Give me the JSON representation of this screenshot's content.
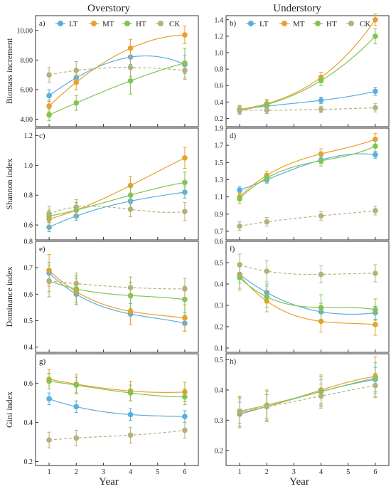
{
  "figure": {
    "overstory_title": "Overstory",
    "understory_title": "Understory",
    "xlabel": "Year",
    "legend": [
      "LT",
      "MT",
      "HT",
      "CK"
    ]
  },
  "colors": {
    "LT": "#5aaee0",
    "MT": "#e9a02e",
    "HT": "#82c452",
    "CK": "#b6b07a"
  },
  "chart_data": [
    {
      "panel": "a)",
      "type": "line",
      "ylabel": "Biomass increment",
      "x": [
        1,
        2,
        4,
        6
      ],
      "xlim": [
        0.5,
        6.5
      ],
      "ylim": [
        3.5,
        11
      ],
      "yticks": [
        "4.00",
        "6.00",
        "8.00",
        "10.00"
      ],
      "ytick_values": [
        4,
        6,
        8,
        10
      ],
      "xticks": [
        "1",
        "2",
        "3",
        "4",
        "5",
        "6"
      ],
      "grid": false,
      "legend": "top",
      "series": [
        {
          "name": "LT",
          "values": [
            5.6,
            6.8,
            8.2,
            7.7
          ],
          "err": [
            0.4,
            0.4,
            0.5,
            0.6
          ]
        },
        {
          "name": "MT",
          "values": [
            4.9,
            6.5,
            8.8,
            9.7
          ],
          "err": [
            0.4,
            0.5,
            0.6,
            0.6
          ]
        },
        {
          "name": "HT",
          "values": [
            4.3,
            5.1,
            6.6,
            7.8
          ],
          "err": [
            0.4,
            0.5,
            0.9,
            1.0
          ]
        },
        {
          "name": "CK",
          "values": [
            7.0,
            7.3,
            7.5,
            7.3
          ],
          "err": [
            0.5,
            0.6,
            0.6,
            0.6
          ]
        }
      ]
    },
    {
      "panel": "b)",
      "type": "line",
      "ylabel": "",
      "x": [
        1,
        2,
        4,
        6
      ],
      "xlim": [
        0.5,
        6.5
      ],
      "ylim": [
        0.1,
        1.45
      ],
      "yticks": [
        "0.2",
        "0.4",
        "0.6",
        "0.8",
        "1.0",
        "1.2",
        "1.4"
      ],
      "ytick_values": [
        0.2,
        0.4,
        0.6,
        0.8,
        1.0,
        1.2,
        1.4
      ],
      "xticks": [
        "1",
        "2",
        "3",
        "4",
        "5",
        "6"
      ],
      "grid": false,
      "legend": "top",
      "series": [
        {
          "name": "LT",
          "values": [
            0.31,
            0.35,
            0.42,
            0.53
          ],
          "err": [
            0.04,
            0.04,
            0.04,
            0.05
          ]
        },
        {
          "name": "MT",
          "values": [
            0.31,
            0.38,
            0.7,
            1.4
          ],
          "err": [
            0.05,
            0.05,
            0.06,
            0.07
          ]
        },
        {
          "name": "HT",
          "values": [
            0.3,
            0.37,
            0.66,
            1.2
          ],
          "err": [
            0.05,
            0.05,
            0.06,
            0.09
          ]
        },
        {
          "name": "CK",
          "values": [
            0.3,
            0.3,
            0.31,
            0.33
          ],
          "err": [
            0.04,
            0.04,
            0.04,
            0.05
          ]
        }
      ]
    },
    {
      "panel": "c)",
      "type": "line",
      "ylabel": "Shannon index",
      "x": [
        1,
        2,
        4,
        6
      ],
      "xlim": [
        0.5,
        6.5
      ],
      "ylim": [
        0.5,
        1.25
      ],
      "yticks": [
        "0.6",
        "0.8",
        "1.0",
        "1.2"
      ],
      "ytick_values": [
        0.6,
        0.8,
        1.0,
        1.2
      ],
      "xticks": [
        "1",
        "2",
        "3",
        "4",
        "5",
        "6"
      ],
      "grid": false,
      "series": [
        {
          "name": "LT",
          "values": [
            0.585,
            0.66,
            0.76,
            0.82
          ],
          "err": [
            0.03,
            0.03,
            0.04,
            0.04
          ]
        },
        {
          "name": "MT",
          "values": [
            0.64,
            0.7,
            0.865,
            1.05
          ],
          "err": [
            0.05,
            0.05,
            0.06,
            0.07
          ]
        },
        {
          "name": "HT",
          "values": [
            0.66,
            0.7,
            0.8,
            0.885
          ],
          "err": [
            0.04,
            0.05,
            0.06,
            0.07
          ]
        },
        {
          "name": "CK",
          "values": [
            0.675,
            0.72,
            0.705,
            0.69
          ],
          "err": [
            0.05,
            0.05,
            0.05,
            0.06
          ]
        }
      ]
    },
    {
      "panel": "d)",
      "type": "line",
      "ylabel": "",
      "x": [
        1,
        2,
        4,
        6
      ],
      "xlim": [
        0.5,
        6.5
      ],
      "ylim": [
        0.6,
        1.9
      ],
      "yticks": [
        "0.7",
        "0.9",
        "1.1",
        "1.3",
        "1.5",
        "1.7",
        "1.9"
      ],
      "ytick_values": [
        0.7,
        0.9,
        1.1,
        1.3,
        1.5,
        1.7,
        1.9
      ],
      "xticks": [
        "1",
        "2",
        "3",
        "4",
        "5",
        "6"
      ],
      "grid": false,
      "series": [
        {
          "name": "LT",
          "values": [
            1.18,
            1.3,
            1.53,
            1.59
          ],
          "err": [
            0.04,
            0.04,
            0.04,
            0.04
          ]
        },
        {
          "name": "MT",
          "values": [
            1.1,
            1.35,
            1.6,
            1.77
          ],
          "err": [
            0.05,
            0.05,
            0.06,
            0.07
          ]
        },
        {
          "name": "HT",
          "values": [
            1.08,
            1.32,
            1.52,
            1.69
          ],
          "err": [
            0.06,
            0.05,
            0.06,
            0.06
          ]
        },
        {
          "name": "CK",
          "values": [
            0.76,
            0.81,
            0.88,
            0.94
          ],
          "err": [
            0.05,
            0.05,
            0.05,
            0.05
          ]
        }
      ]
    },
    {
      "panel": "e)",
      "type": "line",
      "ylabel": "Dominance index",
      "x": [
        1,
        2,
        4,
        6
      ],
      "xlim": [
        0.5,
        6.5
      ],
      "ylim": [
        0.38,
        0.8
      ],
      "yticks": [
        "0.4",
        "0.5",
        "0.6",
        "0.7",
        "0.8"
      ],
      "ytick_values": [
        0.4,
        0.5,
        0.6,
        0.7,
        0.8
      ],
      "xticks": [
        "1",
        "2",
        "3",
        "4",
        "5",
        "6"
      ],
      "grid": false,
      "series": [
        {
          "name": "LT",
          "values": [
            0.68,
            0.6,
            0.525,
            0.49
          ],
          "err": [
            0.04,
            0.04,
            0.04,
            0.03
          ]
        },
        {
          "name": "MT",
          "values": [
            0.69,
            0.61,
            0.535,
            0.51
          ],
          "err": [
            0.06,
            0.05,
            0.05,
            0.05
          ]
        },
        {
          "name": "HT",
          "values": [
            0.65,
            0.62,
            0.595,
            0.58
          ],
          "err": [
            0.06,
            0.05,
            0.05,
            0.05
          ]
        },
        {
          "name": "CK",
          "values": [
            0.65,
            0.64,
            0.625,
            0.62
          ],
          "err": [
            0.04,
            0.04,
            0.04,
            0.04
          ]
        }
      ]
    },
    {
      "panel": "f)",
      "type": "line",
      "ylabel": "",
      "x": [
        1,
        2,
        4,
        6
      ],
      "xlim": [
        0.5,
        6.5
      ],
      "ylim": [
        0.08,
        0.6
      ],
      "yticks": [
        "0.1",
        "0.2",
        "0.3",
        "0.4",
        "0.5",
        "0.6"
      ],
      "ytick_values": [
        0.1,
        0.2,
        0.3,
        0.4,
        0.5,
        0.6
      ],
      "xticks": [
        "1",
        "2",
        "3",
        "4",
        "5",
        "6"
      ],
      "grid": false,
      "series": [
        {
          "name": "LT",
          "values": [
            0.445,
            0.36,
            0.27,
            0.265
          ],
          "err": [
            0.04,
            0.04,
            0.04,
            0.03
          ]
        },
        {
          "name": "MT",
          "values": [
            0.44,
            0.32,
            0.225,
            0.21
          ],
          "err": [
            0.06,
            0.05,
            0.05,
            0.05
          ]
        },
        {
          "name": "HT",
          "values": [
            0.43,
            0.34,
            0.29,
            0.28
          ],
          "err": [
            0.06,
            0.05,
            0.06,
            0.05
          ]
        },
        {
          "name": "CK",
          "values": [
            0.49,
            0.46,
            0.445,
            0.45
          ],
          "err": [
            0.05,
            0.05,
            0.04,
            0.04
          ]
        }
      ]
    },
    {
      "panel": "g)",
      "type": "line",
      "ylabel": "Gini index",
      "x": [
        1,
        2,
        4,
        6
      ],
      "xlim": [
        0.5,
        6.5
      ],
      "ylim": [
        0.18,
        0.75
      ],
      "yticks": [
        "0.2",
        "0.4",
        "0.6"
      ],
      "ytick_values": [
        0.2,
        0.4,
        0.6
      ],
      "xticks": [
        "1",
        "2",
        "3",
        "4",
        "5",
        "6"
      ],
      "grid": false,
      "series": [
        {
          "name": "LT",
          "values": [
            0.52,
            0.48,
            0.44,
            0.43
          ],
          "err": [
            0.03,
            0.03,
            0.03,
            0.03
          ]
        },
        {
          "name": "MT",
          "values": [
            0.62,
            0.595,
            0.56,
            0.555
          ],
          "err": [
            0.05,
            0.05,
            0.05,
            0.05
          ]
        },
        {
          "name": "HT",
          "values": [
            0.61,
            0.59,
            0.55,
            0.53
          ],
          "err": [
            0.04,
            0.04,
            0.04,
            0.04
          ]
        },
        {
          "name": "CK",
          "values": [
            0.31,
            0.32,
            0.335,
            0.36
          ],
          "err": [
            0.04,
            0.04,
            0.04,
            0.04
          ]
        }
      ]
    },
    {
      "panel": "h)",
      "type": "line",
      "ylabel": "",
      "x": [
        1,
        2,
        4,
        6
      ],
      "xlim": [
        0.5,
        6.5
      ],
      "ylim": [
        0.15,
        0.52
      ],
      "yticks": [
        "0.2",
        "0.3",
        "0.4",
        "0.5"
      ],
      "ytick_values": [
        0.2,
        0.3,
        0.4,
        0.5
      ],
      "xticks": [
        "1",
        "2",
        "3",
        "4",
        "5",
        "6"
      ],
      "grid": false,
      "series": [
        {
          "name": "LT",
          "values": [
            0.32,
            0.345,
            0.395,
            0.435
          ],
          "err": [
            0.04,
            0.04,
            0.04,
            0.04
          ]
        },
        {
          "name": "MT",
          "values": [
            0.325,
            0.345,
            0.4,
            0.445
          ],
          "err": [
            0.05,
            0.05,
            0.05,
            0.065
          ]
        },
        {
          "name": "HT",
          "values": [
            0.33,
            0.35,
            0.395,
            0.44
          ],
          "err": [
            0.05,
            0.05,
            0.05,
            0.05
          ]
        },
        {
          "name": "CK",
          "values": [
            0.33,
            0.345,
            0.38,
            0.415
          ],
          "err": [
            0.04,
            0.04,
            0.04,
            0.04
          ]
        }
      ]
    }
  ]
}
